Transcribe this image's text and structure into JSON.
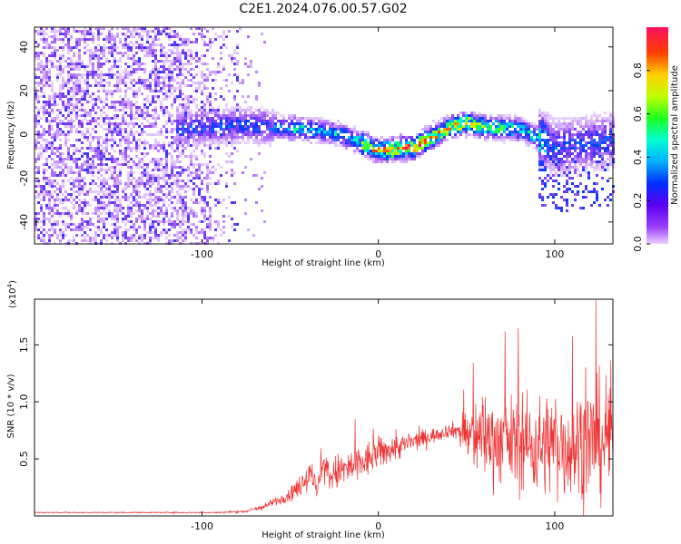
{
  "title": "C2E1.2024.076.00.57.G02",
  "colors": {
    "snr_line": "#ee3333",
    "frame": "#111111",
    "background": "#ffffff"
  },
  "chart_data": [
    {
      "type": "heatmap",
      "xlabel": "Height of straight line (km)",
      "ylabel": "Frequency (Hz)",
      "xlim": [
        -195,
        133
      ],
      "ylim": [
        -50,
        49
      ],
      "x_ticks": [
        -100,
        0,
        100
      ],
      "y_ticks": [
        -40,
        -20,
        0,
        20,
        40
      ],
      "grid": false,
      "colorbar": {
        "label": "Normalized spectral amplitude",
        "range": [
          0.0,
          1.0
        ],
        "ticks": [
          0.0,
          0.2,
          0.4,
          0.6,
          0.8
        ],
        "colormap": "rainbow"
      },
      "ridge": {
        "x": [
          -115,
          -100,
          -80,
          -60,
          -40,
          -20,
          0,
          20,
          40,
          50,
          60,
          80,
          100,
          133
        ],
        "y": [
          3,
          4,
          5,
          4,
          3,
          0,
          -7,
          -5,
          4,
          6,
          4,
          3,
          -5,
          -2
        ]
      }
    },
    {
      "type": "line",
      "xlabel": "Height of straight line (km)",
      "ylabel": "SNR (10 * v/v)",
      "multiplier": "(x10",
      "multiplier_exponent": "4",
      "multiplier_close": ")",
      "xlim": [
        -195,
        133
      ],
      "ylim": [
        0,
        19000
      ],
      "x_ticks": [
        -100,
        0,
        100
      ],
      "y_ticks": [
        5000,
        10000,
        15000
      ],
      "y_tick_labels": [
        "0.5",
        "1.0",
        "1.5"
      ],
      "grid": false,
      "envelope": {
        "x": [
          -195,
          -90,
          -75,
          -65,
          -55,
          -45,
          -38,
          -35,
          -32,
          -28,
          -20,
          -10,
          0,
          10,
          20,
          30,
          40,
          45,
          50,
          60,
          70,
          80,
          90,
          100,
          110,
          120,
          133
        ],
        "mean": [
          300,
          300,
          400,
          800,
          1500,
          2500,
          4000,
          2000,
          4500,
          3500,
          4000,
          4500,
          5500,
          6000,
          6500,
          7000,
          7500,
          7500,
          7000,
          7000,
          6500,
          6500,
          6000,
          6500,
          6000,
          6500,
          7000
        ],
        "spread": [
          80,
          100,
          200,
          500,
          800,
          1500,
          3000,
          1500,
          2500,
          2500,
          3000,
          3000,
          2500,
          2000,
          1500,
          1200,
          1000,
          1500,
          5000,
          6500,
          6500,
          7000,
          7500,
          8000,
          8500,
          9000,
          9500
        ]
      }
    }
  ]
}
